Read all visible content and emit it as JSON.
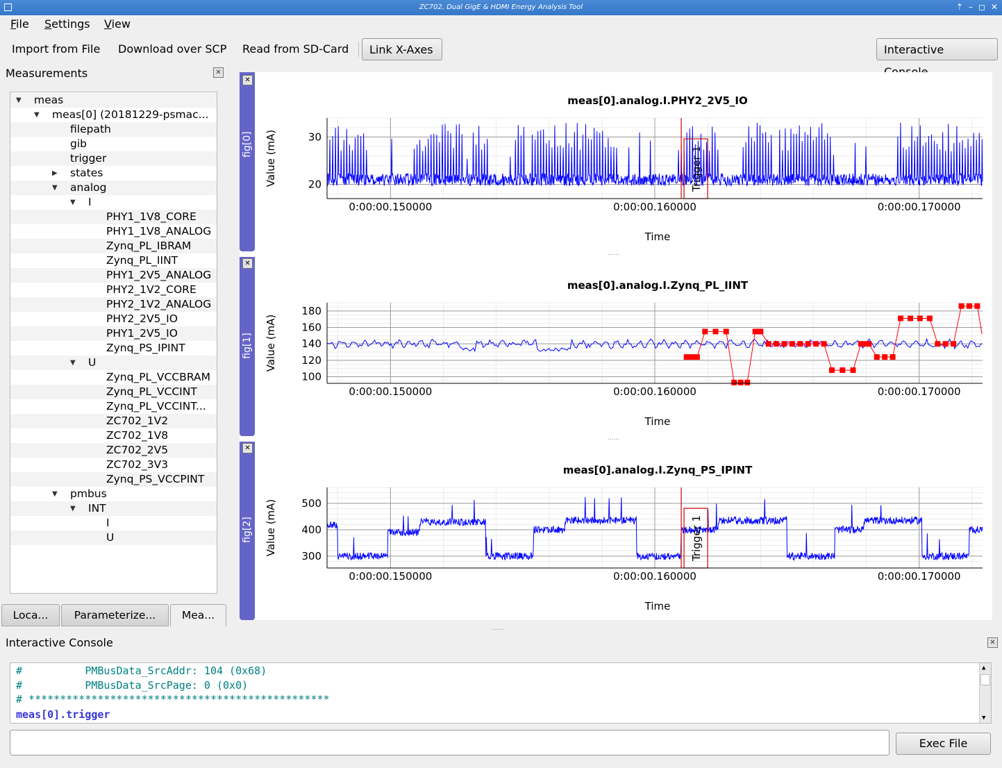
{
  "window": {
    "title": "ZC702, Dual GigE & HDMI Energy Analysis Tool",
    "controls": [
      "⇡",
      "–",
      "◻",
      "✕"
    ]
  },
  "menu": {
    "file": "File",
    "settings": "Settings",
    "view": "View"
  },
  "toolbar": {
    "import": "Import from File",
    "download": "Download over SCP",
    "read_sd": "Read from SD-Card",
    "link_x": "Link X-Axes",
    "console_btn": "Interactive Console"
  },
  "measurements": {
    "title": "Measurements",
    "tree": [
      {
        "label": "meas",
        "level": 0,
        "arrow": "down"
      },
      {
        "label": "meas[0] (20181229-psmac...",
        "level": 1,
        "arrow": "down"
      },
      {
        "label": "filepath",
        "level": 2,
        "arrow": ""
      },
      {
        "label": "gib",
        "level": 2,
        "arrow": ""
      },
      {
        "label": "trigger",
        "level": 2,
        "arrow": ""
      },
      {
        "label": "states",
        "level": 2,
        "arrow": "right"
      },
      {
        "label": "analog",
        "level": 2,
        "arrow": "down"
      },
      {
        "label": "I",
        "level": 3,
        "arrow": "down"
      },
      {
        "label": "PHY1_1V8_CORE",
        "level": 4,
        "arrow": ""
      },
      {
        "label": "PHY1_1V8_ANALOG",
        "level": 4,
        "arrow": ""
      },
      {
        "label": "Zynq_PL_IBRAM",
        "level": 4,
        "arrow": ""
      },
      {
        "label": "Zynq_PL_IINT",
        "level": 4,
        "arrow": ""
      },
      {
        "label": "PHY1_2V5_ANALOG",
        "level": 4,
        "arrow": ""
      },
      {
        "label": "PHY2_1V2_CORE",
        "level": 4,
        "arrow": ""
      },
      {
        "label": "PHY2_1V2_ANALOG",
        "level": 4,
        "arrow": ""
      },
      {
        "label": "PHY2_2V5_IO",
        "level": 4,
        "arrow": ""
      },
      {
        "label": "PHY1_2V5_IO",
        "level": 4,
        "arrow": ""
      },
      {
        "label": "Zynq_PS_IPINT",
        "level": 4,
        "arrow": ""
      },
      {
        "label": "U",
        "level": 3,
        "arrow": "down"
      },
      {
        "label": "Zynq_PL_VCCBRAM",
        "level": 4,
        "arrow": ""
      },
      {
        "label": "Zynq_PL_VCCINT",
        "level": 4,
        "arrow": ""
      },
      {
        "label": "Zynq_PL_VCCINT...",
        "level": 4,
        "arrow": ""
      },
      {
        "label": "ZC702_1V2",
        "level": 4,
        "arrow": ""
      },
      {
        "label": "ZC702_1V8",
        "level": 4,
        "arrow": ""
      },
      {
        "label": "ZC702_2V5",
        "level": 4,
        "arrow": ""
      },
      {
        "label": "ZC702_3V3",
        "level": 4,
        "arrow": ""
      },
      {
        "label": "Zynq_PS_VCCPINT",
        "level": 4,
        "arrow": ""
      },
      {
        "label": "pmbus",
        "level": 2,
        "arrow": "down"
      },
      {
        "label": "INT",
        "level": 3,
        "arrow": "down"
      },
      {
        "label": "I",
        "level": 4,
        "arrow": ""
      },
      {
        "label": "U",
        "level": 4,
        "arrow": ""
      }
    ]
  },
  "bottom_tabs": [
    "Loca...",
    "Parameterize...",
    "Mea..."
  ],
  "figures": [
    {
      "tab": "fig[0]",
      "title": "meas[0].analog.I.PHY2_2V5_IO",
      "ylabel": "Value (mA)",
      "xlabel": "Time",
      "trigger": "Trigger 1"
    },
    {
      "tab": "fig[1]",
      "title": "meas[0].analog.I.Zynq_PL_IINT",
      "ylabel": "Value (mA)",
      "xlabel": "Time"
    },
    {
      "tab": "fig[2]",
      "title": "meas[0].analog.I.Zynq_PS_IPINT",
      "ylabel": "Value (mA)",
      "xlabel": "Time",
      "trigger": "Trigger 1"
    }
  ],
  "chart_data": [
    {
      "type": "line",
      "title": "meas[0].analog.I.PHY2_2V5_IO",
      "xlabel": "Time",
      "ylabel": "Value (mA)",
      "x_tick_labels": [
        "0:00:00.150000",
        "0:00:00.160000",
        "0:00:00.170000"
      ],
      "x_ticks_s": [
        0.15,
        0.16,
        0.17
      ],
      "xlim_s": [
        0.1476,
        0.1724
      ],
      "y_ticks": [
        20,
        30
      ],
      "ylim": [
        17,
        34
      ],
      "grid": true,
      "series": [
        {
          "color": "#0000ff",
          "baseline": 21,
          "burst_high": 33,
          "bursts_s": [
            [
              0.1477,
              0.1491
            ],
            [
              0.1509,
              0.1516
            ],
            [
              0.1508,
              0.1528
            ],
            [
              0.1531,
              0.1537
            ],
            [
              0.1547,
              0.1551
            ],
            [
              0.1553,
              0.1586
            ],
            [
              0.1608,
              0.1624
            ],
            [
              0.1633,
              0.1645
            ],
            [
              0.1647,
              0.1667
            ],
            [
              0.1691,
              0.1724
            ]
          ]
        }
      ],
      "annotations": [
        {
          "type": "vline",
          "x_s": 0.161,
          "color": "#cc0000"
        },
        {
          "type": "label",
          "text": "Trigger 1",
          "x_s": 0.1615
        }
      ]
    },
    {
      "type": "line",
      "title": "meas[0].analog.I.Zynq_PL_IINT",
      "xlabel": "Time",
      "ylabel": "Value (mA)",
      "x_tick_labels": [
        "0:00:00.150000",
        "0:00:00.160000",
        "0:00:00.170000"
      ],
      "x_ticks_s": [
        0.15,
        0.16,
        0.17
      ],
      "xlim_s": [
        0.1476,
        0.1724
      ],
      "y_ticks": [
        100,
        120,
        140,
        160,
        180
      ],
      "ylim": [
        92,
        190
      ],
      "grid": true,
      "series": [
        {
          "color": "#0000ff",
          "baseline": 140,
          "noise": 6
        },
        {
          "color": "#ff0000",
          "markers": true,
          "steps": [
            [
              0.1612,
              124
            ],
            [
              0.1619,
              155
            ],
            [
              0.163,
              93
            ],
            [
              0.1638,
              155
            ],
            [
              0.1643,
              140
            ],
            [
              0.1667,
              108
            ],
            [
              0.1678,
              140
            ],
            [
              0.1684,
              124
            ],
            [
              0.1693,
              171
            ],
            [
              0.1707,
              140
            ],
            [
              0.1716,
              186
            ]
          ]
        }
      ]
    },
    {
      "type": "line",
      "title": "meas[0].analog.I.Zynq_PS_IPINT",
      "xlabel": "Time",
      "ylabel": "Value (mA)",
      "x_tick_labels": [
        "0:00:00.150000",
        "0:00:00.160000",
        "0:00:00.170000"
      ],
      "x_ticks_s": [
        0.15,
        0.16,
        0.17
      ],
      "xlim_s": [
        0.1476,
        0.1724
      ],
      "y_ticks": [
        300,
        400,
        500
      ],
      "ylim": [
        255,
        560
      ],
      "grid": true,
      "series": [
        {
          "color": "#0000ff",
          "levels": [
            [
              0.1476,
              420
            ],
            [
              0.148,
              300
            ],
            [
              0.1499,
              390
            ],
            [
              0.1511,
              430
            ],
            [
              0.1536,
              300
            ],
            [
              0.1554,
              400
            ],
            [
              0.1566,
              435
            ],
            [
              0.1593,
              300
            ],
            [
              0.161,
              400
            ],
            [
              0.1624,
              435
            ],
            [
              0.165,
              300
            ],
            [
              0.1668,
              400
            ],
            [
              0.1679,
              435
            ],
            [
              0.1701,
              300
            ],
            [
              0.1719,
              400
            ]
          ]
        }
      ],
      "annotations": [
        {
          "type": "vline",
          "x_s": 0.161,
          "color": "#cc0000"
        },
        {
          "type": "label",
          "text": "Trigger 1",
          "x_s": 0.1615
        }
      ]
    }
  ],
  "console": {
    "title": "Interactive Console",
    "lines": [
      {
        "text": "#          PMBusData_SrcAddr: 104 (0x68)",
        "kind": "comment"
      },
      {
        "text": "#          PMBusData_SrcPage: 0 (0x0)",
        "kind": "comment"
      },
      {
        "text": "# ************************************************",
        "kind": "comment"
      },
      {
        "text": "meas[0].trigger",
        "kind": "kw"
      }
    ],
    "input_value": "",
    "exec_button": "Exec File"
  }
}
